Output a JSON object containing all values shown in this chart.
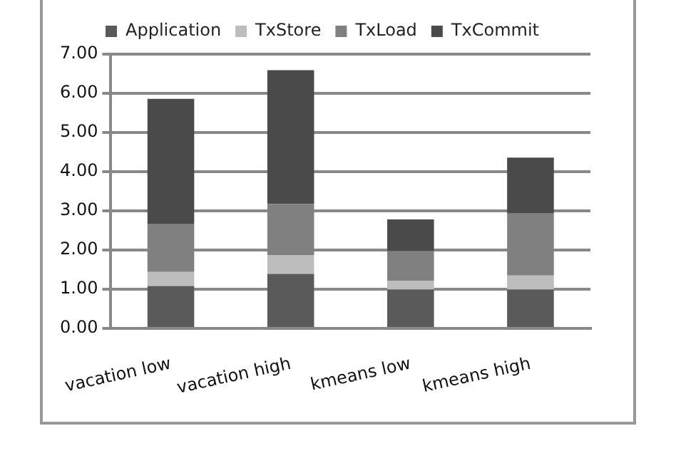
{
  "chart_data": {
    "type": "bar",
    "stacked": true,
    "categories": [
      "vacation low",
      "vacation high",
      "kmeans low",
      "kmeans high"
    ],
    "series": [
      {
        "name": "Application",
        "color": "#5a5a5a",
        "values": [
          1.08,
          1.39,
          0.99,
          0.99
        ]
      },
      {
        "name": "TxStore",
        "color": "#bdbdbd",
        "values": [
          0.36,
          0.48,
          0.22,
          0.36
        ]
      },
      {
        "name": "TxLoad",
        "color": "#808080",
        "values": [
          1.22,
          1.3,
          0.76,
          1.58
        ]
      },
      {
        "name": "TxCommit",
        "color": "#4a4a4a",
        "values": [
          3.2,
          3.42,
          0.81,
          1.43
        ]
      }
    ],
    "ylim": [
      0,
      7
    ],
    "yticks": [
      {
        "value": 0,
        "label": "0.00"
      },
      {
        "value": 1,
        "label": "1.00"
      },
      {
        "value": 2,
        "label": "2.00"
      },
      {
        "value": 3,
        "label": "3.00"
      },
      {
        "value": 4,
        "label": "4.00"
      },
      {
        "value": 5,
        "label": "5.00"
      },
      {
        "value": 6,
        "label": "6.00"
      },
      {
        "value": 7,
        "label": "7.00"
      }
    ],
    "grid": "y",
    "legend": "top"
  }
}
